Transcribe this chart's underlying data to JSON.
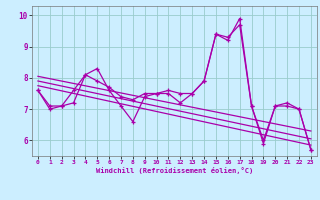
{
  "xlabel": "Windchill (Refroidissement éolien,°C)",
  "bg_color": "#cceeff",
  "line_color": "#aa00aa",
  "grid_color": "#99cccc",
  "xlim": [
    -0.5,
    23.5
  ],
  "ylim": [
    5.5,
    10.3
  ],
  "yticks": [
    6,
    7,
    8,
    9,
    10
  ],
  "xticks": [
    0,
    1,
    2,
    3,
    4,
    5,
    6,
    7,
    8,
    9,
    10,
    11,
    12,
    13,
    14,
    15,
    16,
    17,
    18,
    19,
    20,
    21,
    22,
    23
  ],
  "series1": [
    7.6,
    7.1,
    7.1,
    7.2,
    8.1,
    8.3,
    7.6,
    7.1,
    6.6,
    7.4,
    7.5,
    7.5,
    7.2,
    7.5,
    7.9,
    9.4,
    9.2,
    9.9,
    7.1,
    5.9,
    7.1,
    7.1,
    7.0,
    5.7
  ],
  "series2": [
    7.6,
    7.0,
    7.1,
    7.6,
    8.1,
    7.9,
    7.7,
    7.4,
    7.3,
    7.5,
    7.5,
    7.6,
    7.5,
    7.5,
    7.9,
    9.4,
    9.3,
    9.7,
    7.1,
    6.0,
    7.1,
    7.2,
    7.0,
    5.7
  ],
  "regression_lines": [
    [
      8.05,
      6.3
    ],
    [
      7.9,
      6.05
    ],
    [
      7.75,
      5.85
    ]
  ]
}
